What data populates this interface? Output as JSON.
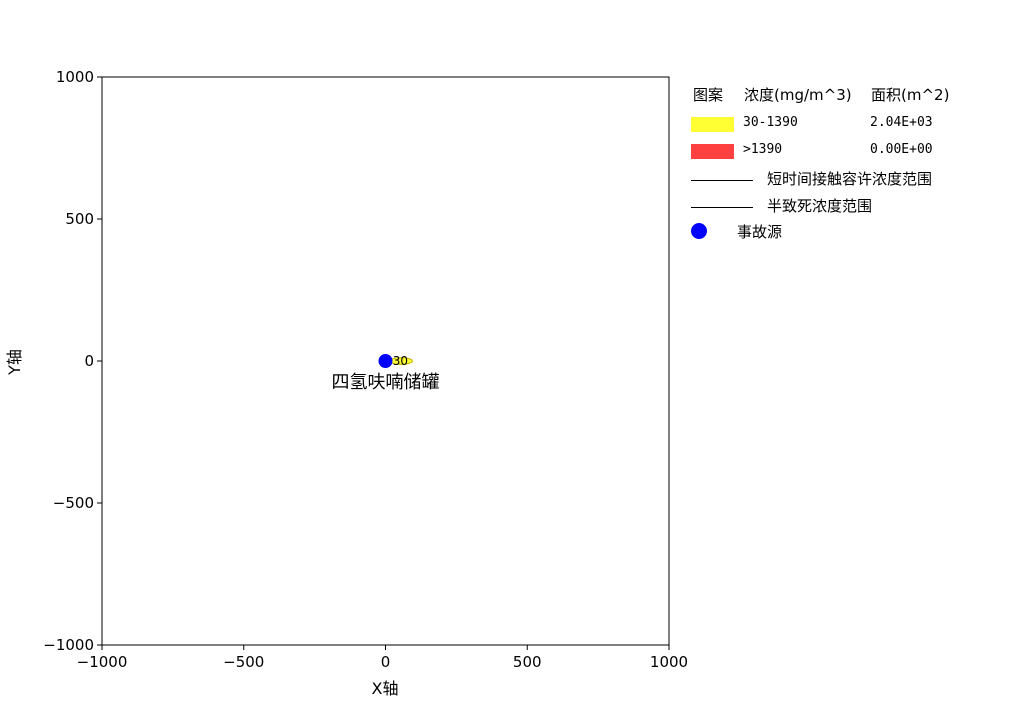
{
  "chart_data": {
    "type": "scatter",
    "xlabel": "X轴",
    "ylabel": "Y轴",
    "xlim": [
      -1000,
      1000
    ],
    "ylim": [
      -1000,
      1000
    ],
    "xticks": [
      "−1000",
      "−500",
      "0",
      "500",
      "1000"
    ],
    "yticks": [
      "1000",
      "500",
      "0",
      "−500",
      "−1000"
    ],
    "xtick_values": [
      -1000,
      -500,
      0,
      500,
      1000
    ],
    "ytick_values": [
      1000,
      500,
      0,
      -500,
      -1000
    ],
    "grid": false,
    "source": {
      "x": 0,
      "y": 0,
      "label": "四氢呋喃储罐",
      "color": "#0000ff"
    },
    "plume": {
      "contour_label": "30",
      "x_range": [
        15,
        95
      ],
      "y_range": [
        -12,
        12
      ],
      "color": "#ffff33"
    },
    "legend": {
      "placement": "right",
      "headers": [
        "图案",
        "浓度(mg/m^3)",
        "面积(m^2)"
      ],
      "rows": [
        {
          "range": "30-1390",
          "area": "2.04E+03",
          "color": "#ffff33"
        },
        {
          "range": ">1390",
          "area": "0.00E+00",
          "color": "#ff4040"
        }
      ],
      "lines": [
        "短时间接触容许浓度范围",
        "半致死浓度范围"
      ],
      "source_label": "事故源"
    }
  }
}
